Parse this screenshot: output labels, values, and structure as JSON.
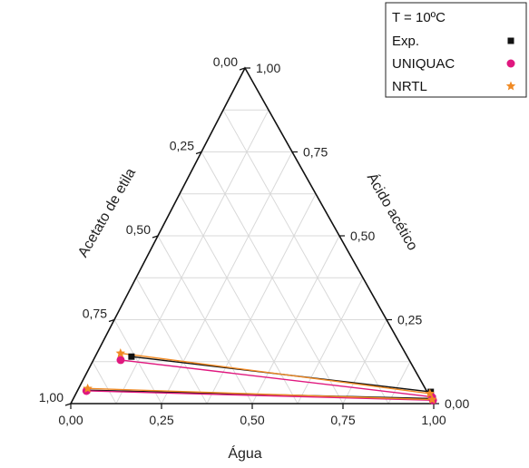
{
  "chart_data": {
    "type": "ternary",
    "axes": {
      "bottom": {
        "label": "Água",
        "ticks": [
          "0,00",
          "0,25",
          "0,50",
          "0,75",
          "1,00"
        ]
      },
      "left": {
        "label": "Acetato de etila",
        "ticks": [
          "1,00",
          "0,75",
          "0,50",
          "0,25",
          "0,00"
        ]
      },
      "right": {
        "label": "Ácido acético",
        "ticks": [
          "0,00",
          "0,25",
          "0,50",
          "0,75",
          "1,00"
        ]
      }
    },
    "grid": true,
    "legend": {
      "title": "T = 10ºC",
      "placement": "top-right",
      "entries": [
        "Exp.",
        "UNIQUAC",
        "NRTL"
      ]
    },
    "series": [
      {
        "name": "Exp.",
        "marker": "square",
        "color": "#111111",
        "points": [
          {
            "agua": 0.1,
            "acido": 0.14
          },
          {
            "agua": 0.975,
            "acido": 0.035
          },
          {
            "agua": 0.025,
            "acido": 0.04
          },
          {
            "agua": 0.99,
            "acido": 0.015
          }
        ]
      },
      {
        "name": "UNIQUAC",
        "marker": "circle",
        "color": "#e0187f",
        "points": [
          {
            "agua": 0.075,
            "acido": 0.13
          },
          {
            "agua": 0.985,
            "acido": 0.02
          },
          {
            "agua": 0.025,
            "acido": 0.038
          },
          {
            "agua": 0.993,
            "acido": 0.01
          }
        ]
      },
      {
        "name": "NRTL",
        "marker": "star",
        "color": "#f08a24",
        "points": [
          {
            "agua": 0.065,
            "acido": 0.15
          },
          {
            "agua": 0.975,
            "acido": 0.03
          },
          {
            "agua": 0.025,
            "acido": 0.045
          },
          {
            "agua": 0.99,
            "acido": 0.012
          }
        ]
      }
    ],
    "tie_lines": [
      {
        "color": "#111111",
        "from": {
          "agua": 0.1,
          "acido": 0.14
        },
        "to": {
          "agua": 0.975,
          "acido": 0.035
        }
      },
      {
        "color": "#e0187f",
        "from": {
          "agua": 0.075,
          "acido": 0.13
        },
        "to": {
          "agua": 0.985,
          "acido": 0.02
        }
      },
      {
        "color": "#f08a24",
        "from": {
          "agua": 0.065,
          "acido": 0.15
        },
        "to": {
          "agua": 0.975,
          "acido": 0.03
        }
      },
      {
        "color": "#111111",
        "from": {
          "agua": 0.025,
          "acido": 0.04
        },
        "to": {
          "agua": 0.99,
          "acido": 0.015
        }
      },
      {
        "color": "#e0187f",
        "from": {
          "agua": 0.025,
          "acido": 0.038
        },
        "to": {
          "agua": 0.993,
          "acido": 0.01
        }
      },
      {
        "color": "#f08a24",
        "from": {
          "agua": 0.025,
          "acido": 0.045
        },
        "to": {
          "agua": 0.99,
          "acido": 0.012
        }
      }
    ]
  }
}
